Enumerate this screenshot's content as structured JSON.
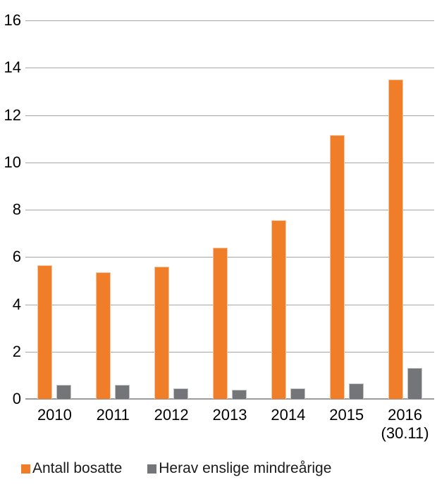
{
  "chart_data": {
    "type": "bar",
    "categories": [
      "2010",
      "2011",
      "2012",
      "2013",
      "2014",
      "2015",
      "2016"
    ],
    "category_sublabels": [
      "",
      "",
      "",
      "",
      "",
      "",
      "(30.11)"
    ],
    "series": [
      {
        "name": "Antall bosatte",
        "color": "#F07D27",
        "values": [
          5.65,
          5.35,
          5.6,
          6.4,
          7.55,
          11.15,
          13.5
        ]
      },
      {
        "name": "Herav enslige mindreårige",
        "color": "#747578",
        "values": [
          0.6,
          0.6,
          0.45,
          0.4,
          0.45,
          0.65,
          1.3
        ]
      }
    ],
    "title": "",
    "xlabel": "",
    "ylabel": "",
    "ylim": [
      0,
      16
    ],
    "yticks": [
      0,
      2,
      4,
      6,
      8,
      10,
      12,
      14,
      16
    ],
    "grid": "horizontal",
    "legend_position": "bottom",
    "colors": {
      "gridline": "#A7A7A7",
      "axis_line": "#9B9B9B",
      "tick_text": "#000000"
    }
  }
}
